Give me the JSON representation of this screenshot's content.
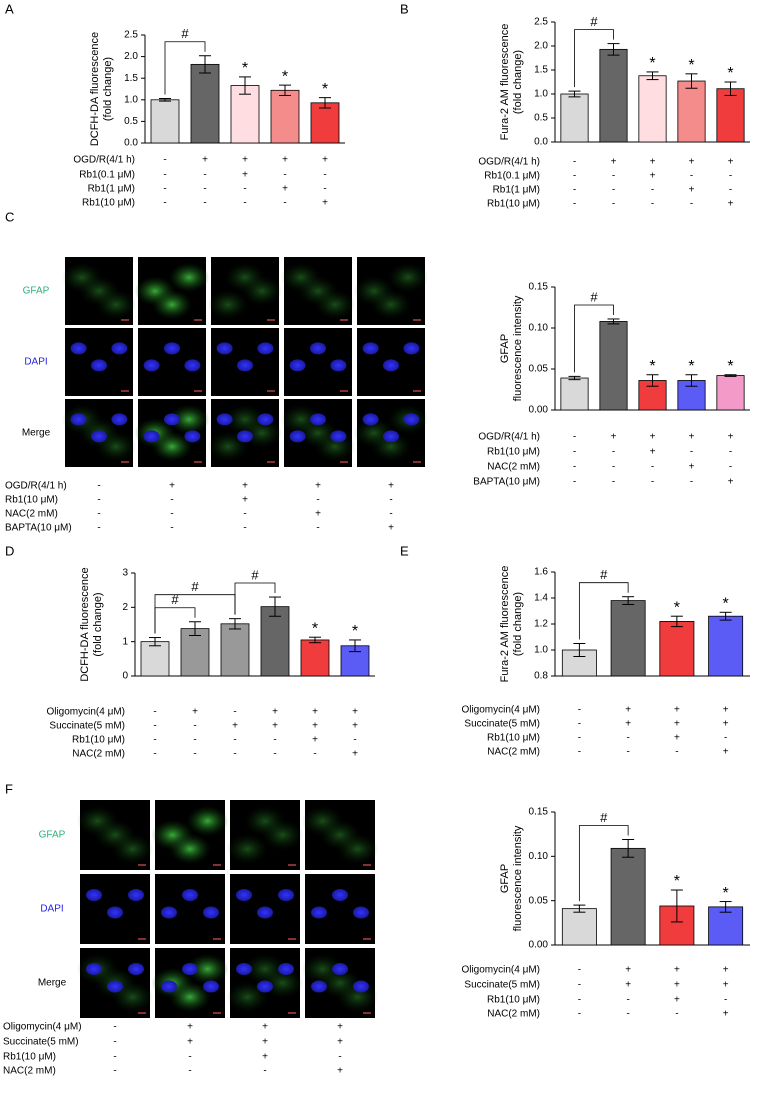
{
  "chart_data": [
    {
      "type": "bar",
      "panel": "A",
      "ylabel": [
        "DCFH-DA fluorescence",
        "(fold change)"
      ],
      "values": [
        1.0,
        1.82,
        1.33,
        1.22,
        0.93
      ],
      "errors": [
        0.03,
        0.2,
        0.2,
        0.12,
        0.12
      ],
      "colors": [
        "#d9d9d9",
        "#666666",
        "#ffdde0",
        "#f48c8c",
        "#f03c3c"
      ],
      "ylim": [
        0,
        2.5
      ],
      "yticks": [
        {
          "value": 0,
          "label": "0.0"
        },
        0.5,
        {
          "value": 1,
          "label": "1.0"
        },
        1.5,
        {
          "value": 2,
          "label": "2.0"
        },
        2.5
      ],
      "markers": [
        null,
        null,
        "*",
        "*",
        "*"
      ],
      "brackets": [
        {
          "label": "#",
          "bars": [
            0,
            1
          ]
        }
      ],
      "conditions": [
        {
          "label": "OGD/R(4/1 h)",
          "signs": [
            "-",
            "+",
            "+",
            "+",
            "+"
          ]
        },
        {
          "label": "Rb1(0.1 μM)",
          "signs": [
            "-",
            "-",
            "+",
            "-",
            "-"
          ]
        },
        {
          "label": "Rb1(1 μM)",
          "signs": [
            "-",
            "-",
            "-",
            "+",
            "-"
          ]
        },
        {
          "label": "Rb1(10 μM)",
          "signs": [
            "-",
            "-",
            "-",
            "-",
            "+"
          ]
        }
      ]
    },
    {
      "type": "bar",
      "panel": "B",
      "ylabel": [
        "Fura-2 AM fluorescence",
        "(fold change)"
      ],
      "values": [
        1.0,
        1.93,
        1.38,
        1.27,
        1.11
      ],
      "errors": [
        0.06,
        0.12,
        0.08,
        0.15,
        0.14
      ],
      "colors": [
        "#d9d9d9",
        "#666666",
        "#ffdde0",
        "#f48c8c",
        "#f03c3c"
      ],
      "ylim": [
        0,
        2.5
      ],
      "yticks": [
        {
          "value": 0,
          "label": "0.0"
        },
        0.5,
        {
          "value": 1,
          "label": "1.0"
        },
        1.5,
        {
          "value": 2,
          "label": "2.0"
        },
        2.5
      ],
      "markers": [
        null,
        null,
        "*",
        "*",
        "*"
      ],
      "brackets": [
        {
          "label": "#",
          "bars": [
            0,
            1
          ]
        }
      ],
      "conditions": [
        {
          "label": "OGD/R(4/1 h)",
          "signs": [
            "-",
            "+",
            "+",
            "+",
            "+"
          ]
        },
        {
          "label": "Rb1(0.1 μM)",
          "signs": [
            "-",
            "-",
            "+",
            "-",
            "-"
          ]
        },
        {
          "label": "Rb1(1 μM)",
          "signs": [
            "-",
            "-",
            "-",
            "+",
            "-"
          ]
        },
        {
          "label": "Rb1(10 μM)",
          "signs": [
            "-",
            "-",
            "-",
            "-",
            "+"
          ]
        }
      ]
    },
    {
      "type": "bar",
      "ylabel": [
        "GFAP",
        "fluorescence intensity"
      ],
      "values": [
        0.039,
        0.108,
        0.036,
        0.036,
        0.042
      ],
      "errors": [
        0.002,
        0.003,
        0.007,
        0.007,
        0.001
      ],
      "colors": [
        "#d9d9d9",
        "#666666",
        "#f03c3c",
        "#5b5bf5",
        "#f49ac8"
      ],
      "ylim": [
        0,
        0.15
      ],
      "yticks": [
        {
          "value": 0,
          "label": "0.00"
        },
        0.05,
        {
          "value": 0.1,
          "label": "0.10"
        },
        0.15
      ],
      "markers": [
        null,
        null,
        "*",
        "*",
        "*"
      ],
      "brackets": [
        {
          "label": "#",
          "bars": [
            0,
            1
          ]
        }
      ],
      "conditions": [
        {
          "label": "OGD/R(4/1 h)",
          "signs": [
            "-",
            "+",
            "+",
            "+",
            "+"
          ]
        },
        {
          "label": "Rb1(10 μM)",
          "signs": [
            "-",
            "-",
            "+",
            "-",
            "-"
          ]
        },
        {
          "label": "NAC(2 mM)",
          "signs": [
            "-",
            "-",
            "-",
            "+",
            "-"
          ]
        },
        {
          "label": "BAPTA(10 μM)",
          "signs": [
            "-",
            "-",
            "-",
            "-",
            "+"
          ]
        }
      ]
    },
    {
      "type": "bar",
      "panel": "D",
      "ylabel": [
        "DCFH-DA fluorescence",
        "(fold change)"
      ],
      "values": [
        1.0,
        1.38,
        1.52,
        2.02,
        1.05,
        0.88
      ],
      "errors": [
        0.12,
        0.2,
        0.15,
        0.28,
        0.08,
        0.17
      ],
      "colors": [
        "#d9d9d9",
        "#999999",
        "#999999",
        "#666666",
        "#f03c3c",
        "#5b5bf5"
      ],
      "ylim": [
        0,
        3
      ],
      "yticks": [
        0,
        1,
        2,
        3
      ],
      "markers": [
        null,
        null,
        null,
        null,
        "*",
        "*"
      ],
      "brackets": [
        {
          "label": "#",
          "bars": [
            0,
            1
          ]
        },
        {
          "label": "#",
          "bars": [
            0,
            2
          ]
        },
        {
          "label": "#",
          "bars": [
            2,
            3
          ]
        }
      ],
      "conditions": [
        {
          "label": "Oligomycin(4 μM)",
          "signs": [
            "-",
            "+",
            "-",
            "+",
            "+",
            "+"
          ]
        },
        {
          "label": "Succinate(5 mM)",
          "signs": [
            "-",
            "-",
            "+",
            "+",
            "+",
            "+"
          ]
        },
        {
          "label": "Rb1(10 μM)",
          "signs": [
            "-",
            "-",
            "-",
            "-",
            "+",
            "-"
          ]
        },
        {
          "label": "NAC(2 mM)",
          "signs": [
            "-",
            "-",
            "-",
            "-",
            "-",
            "+"
          ]
        }
      ]
    },
    {
      "type": "bar",
      "panel": "E",
      "ylabel": [
        "Fura-2 AM fluorescence",
        "(fold change)"
      ],
      "values": [
        1.0,
        1.38,
        1.22,
        1.26
      ],
      "errors": [
        0.05,
        0.03,
        0.04,
        0.03
      ],
      "colors": [
        "#d9d9d9",
        "#666666",
        "#f03c3c",
        "#5b5bf5"
      ],
      "ylim": [
        0.8,
        1.6
      ],
      "yticks": [
        0.8,
        {
          "value": 1,
          "label": "1.0"
        },
        1.2,
        1.4,
        1.6
      ],
      "markers": [
        null,
        null,
        "*",
        "*"
      ],
      "brackets": [
        {
          "label": "#",
          "bars": [
            0,
            1
          ]
        }
      ],
      "conditions": [
        {
          "label": "Oligomycin(4 μM)",
          "signs": [
            "-",
            "+",
            "+",
            "+"
          ]
        },
        {
          "label": "Succinate(5 mM)",
          "signs": [
            "-",
            "+",
            "+",
            "+"
          ]
        },
        {
          "label": "Rb1(10 μM)",
          "signs": [
            "-",
            "-",
            "+",
            "-"
          ]
        },
        {
          "label": "NAC(2 mM)",
          "signs": [
            "-",
            "-",
            "-",
            "+"
          ]
        }
      ]
    },
    {
      "type": "bar",
      "ylabel": [
        "GFAP",
        "fluorescence intensity"
      ],
      "values": [
        0.041,
        0.109,
        0.044,
        0.043
      ],
      "errors": [
        0.004,
        0.01,
        0.018,
        0.006
      ],
      "colors": [
        "#d9d9d9",
        "#666666",
        "#f03c3c",
        "#5b5bf5"
      ],
      "ylim": [
        0,
        0.15
      ],
      "yticks": [
        {
          "value": 0,
          "label": "0.00"
        },
        0.05,
        {
          "value": 0.1,
          "label": "0.10"
        },
        0.15
      ],
      "markers": [
        null,
        null,
        "*",
        "*"
      ],
      "brackets": [
        {
          "label": "#",
          "bars": [
            0,
            1
          ]
        }
      ],
      "conditions": [
        {
          "label": "Oligomycin(4 μM)",
          "signs": [
            "-",
            "+",
            "+",
            "+"
          ]
        },
        {
          "label": "Succinate(5 mM)",
          "signs": [
            "-",
            "+",
            "+",
            "+"
          ]
        },
        {
          "label": "Rb1(10 μM)",
          "signs": [
            "-",
            "-",
            "+",
            "-"
          ]
        },
        {
          "label": "NAC(2 mM)",
          "signs": [
            "-",
            "-",
            "-",
            "+"
          ]
        }
      ]
    }
  ],
  "micrographs": [
    {
      "panel": "C",
      "rows": [
        "GFAP",
        "DAPI",
        "Merge"
      ],
      "conditions": [
        {
          "label": "OGD/R(4/1 h)",
          "signs": [
            "-",
            "+",
            "+",
            "+",
            "+"
          ]
        },
        {
          "label": "Rb1(10 μM)",
          "signs": [
            "-",
            "-",
            "+",
            "-",
            "-"
          ]
        },
        {
          "label": "NAC(2 mM)",
          "signs": [
            "-",
            "-",
            "-",
            "+",
            "-"
          ]
        },
        {
          "label": "BAPTA(10 μM)",
          "signs": [
            "-",
            "-",
            "-",
            "-",
            "+"
          ]
        }
      ]
    },
    {
      "panel": "F",
      "rows": [
        "GFAP",
        "DAPI",
        "Merge"
      ],
      "conditions": [
        {
          "label": "Oligomycin(4 μM)",
          "signs": [
            "-",
            "+",
            "+",
            "+"
          ]
        },
        {
          "label": "Succinate(5 mM)",
          "signs": [
            "-",
            "+",
            "+",
            "+"
          ]
        },
        {
          "label": "Rb1(10 μM)",
          "signs": [
            "-",
            "-",
            "+",
            "-"
          ]
        },
        {
          "label": "NAC(2 mM)",
          "signs": [
            "-",
            "-",
            "-",
            "+"
          ]
        }
      ]
    }
  ]
}
